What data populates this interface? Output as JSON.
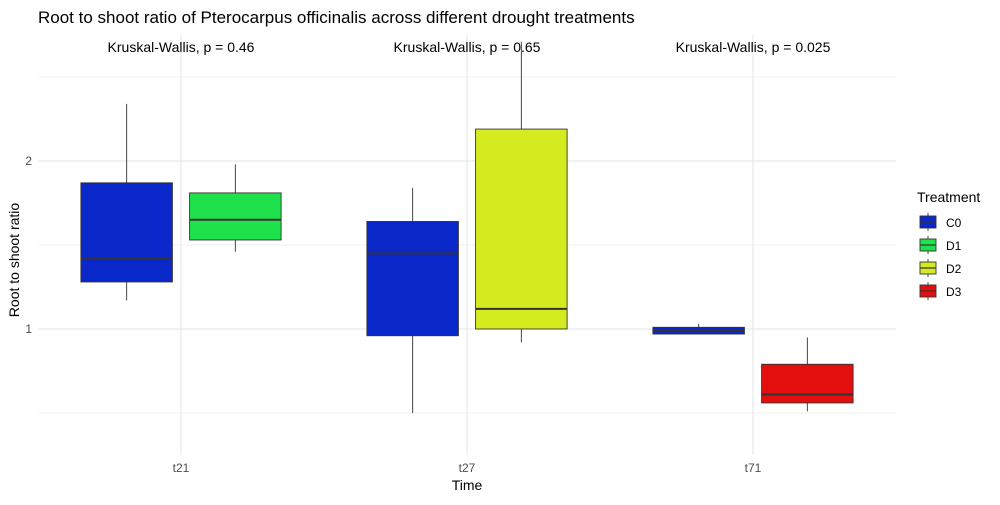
{
  "chart_data": {
    "type": "boxplot",
    "title": "Root to shoot ratio of Pterocarpus officinalis across different drought treatments",
    "xlabel": "Time",
    "ylabel": "Root to shoot ratio",
    "ylim": [
      0.25,
      2.75
    ],
    "yticks": [
      1,
      2
    ],
    "categories": [
      "t21",
      "t27",
      "t71"
    ],
    "grid": true,
    "legend": {
      "title": "Treatment",
      "position": "right",
      "items": [
        {
          "name": "C0",
          "color": "#0a27c9"
        },
        {
          "name": "D1",
          "color": "#1ee14b"
        },
        {
          "name": "D2",
          "color": "#d4ec1f"
        },
        {
          "name": "D3",
          "color": "#e30f0f"
        }
      ]
    },
    "annotations": [
      {
        "category": "t21",
        "text": "Kruskal-Wallis, p = 0.46"
      },
      {
        "category": "t27",
        "text": "Kruskal-Wallis, p = 0.65"
      },
      {
        "category": "t71",
        "text": "Kruskal-Wallis, p = 0.025"
      }
    ],
    "boxes": [
      {
        "category": "t21",
        "group": "C0",
        "min": 1.17,
        "q1": 1.28,
        "median": 1.42,
        "q3": 1.87,
        "max": 2.34
      },
      {
        "category": "t21",
        "group": "D1",
        "min": 1.46,
        "q1": 1.53,
        "median": 1.65,
        "q3": 1.81,
        "max": 1.98
      },
      {
        "category": "t27",
        "group": "C0",
        "min": 0.5,
        "q1": 0.96,
        "median": 1.45,
        "q3": 1.64,
        "max": 1.84
      },
      {
        "category": "t27",
        "group": "D2",
        "min": 0.92,
        "q1": 1.0,
        "median": 1.12,
        "q3": 2.19,
        "max": 2.71
      },
      {
        "category": "t71",
        "group": "C0",
        "min": 0.97,
        "q1": 0.97,
        "median": 0.99,
        "q3": 1.01,
        "max": 1.03
      },
      {
        "category": "t71",
        "group": "D3",
        "min": 0.51,
        "q1": 0.56,
        "median": 0.61,
        "q3": 0.79,
        "max": 0.95
      }
    ]
  }
}
